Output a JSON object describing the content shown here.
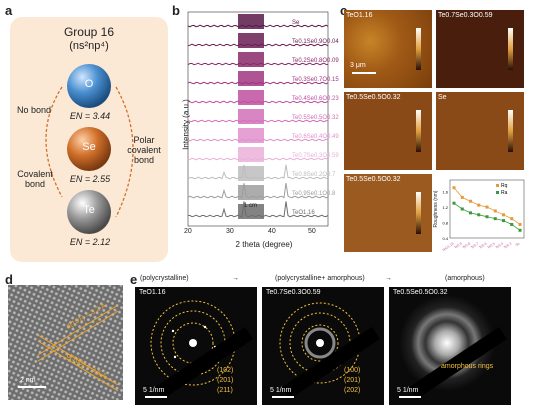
{
  "panel_labels": [
    "a",
    "b",
    "c",
    "d",
    "e"
  ],
  "panel_a": {
    "title": "Group 16",
    "subtitle": "(ns²np⁴)",
    "elements": [
      {
        "symbol": "O",
        "en": "EN = 3.44",
        "color": "#4a8fd0"
      },
      {
        "symbol": "Se",
        "en": "EN = 2.55",
        "color": "#d0702a"
      },
      {
        "symbol": "Te",
        "en": "EN = 2.12",
        "color": "#9a9a9a"
      }
    ],
    "left_labels": [
      "No bond",
      "Covalent bond"
    ],
    "right_label": "Polar covalent bond",
    "background": "#fbe9d6"
  },
  "panel_b": {
    "ylabel": "Intensity (a.u.)",
    "xlabel": "2 theta (degree)",
    "xticks": [
      "20",
      "30",
      "40",
      "50"
    ],
    "scale_label": "1 cm",
    "series": [
      {
        "name": "Se",
        "color": "#5a1a4a"
      },
      {
        "name": "Te0.1Se0.9O0.04",
        "color": "#6a1f55"
      },
      {
        "name": "Te0.2Se0.8O0.09",
        "color": "#8a2a6a"
      },
      {
        "name": "Te0.3Se0.7O0.15",
        "color": "#a03580"
      },
      {
        "name": "Te0.4Se0.6O0.23",
        "color": "#c050a0"
      },
      {
        "name": "Te0.5Se0.5O0.32",
        "color": "#d070b8"
      },
      {
        "name": "Te0.6Se0.4O0.49",
        "color": "#e090cc"
      },
      {
        "name": "Te0.7Se0.3O0.59",
        "color": "#eab0d8"
      },
      {
        "name": "Te0.8Se0.2O0.7",
        "color": "#bdbdbd"
      },
      {
        "name": "Te0.9Se0.1O0.8",
        "color": "#9d9d9d"
      },
      {
        "name": "TeO1.16",
        "color": "#6d6d6d"
      }
    ]
  },
  "panel_c": {
    "images": [
      "TeO1.16",
      "Te0.7Se0.3O0.59",
      "Te0.5Se0.5O0.32",
      "Se",
      "Te0.5Se0.5O0.32"
    ],
    "scale_label": "3 μm",
    "chart_data": {
      "type": "line",
      "ylabel": "Roughness (nm)",
      "categories": [
        "TeO1.16",
        "Te0.9",
        "Te0.8",
        "Te0.7",
        "Te0.6",
        "Te0.5",
        "Te0.4",
        "Te0.3",
        "Se"
      ],
      "series": [
        {
          "name": "Rq",
          "color": "#e59a3a",
          "values": [
            1.7,
            1.45,
            1.35,
            1.25,
            1.2,
            1.1,
            1.0,
            0.9,
            0.75
          ]
        },
        {
          "name": "Ra",
          "color": "#3a9a3a",
          "values": [
            1.3,
            1.15,
            1.05,
            1.0,
            0.95,
            0.9,
            0.85,
            0.75,
            0.6
          ]
        }
      ],
      "ylim": [
        0.4,
        1.9
      ],
      "yticks": [
        "0.4",
        "0.8",
        "1.2",
        "1.6"
      ]
    }
  },
  "panel_d": {
    "spacing1": "d(101) = 3.2 Å",
    "spacing2": "d(100) = 3.5 Å",
    "scale_label": "2 nm"
  },
  "panel_e": {
    "header": [
      "(polycrystalline)",
      "→",
      "(polycrystalline+ amorphous)",
      "→",
      "(amorphous)"
    ],
    "images": [
      {
        "title": "TeO1.16",
        "rings": [
          "(102)",
          "(201)",
          "(211)"
        ],
        "scale": "5 1/nm"
      },
      {
        "title": "Te0.7Se0.3O0.59",
        "rings": [
          "(100)",
          "(201)",
          "(202)"
        ],
        "scale": "5 1/nm"
      },
      {
        "title": "Te0.5Se0.5O0.32",
        "rings": [
          "amorphous rings"
        ],
        "scale": "5 1/nm"
      }
    ]
  }
}
